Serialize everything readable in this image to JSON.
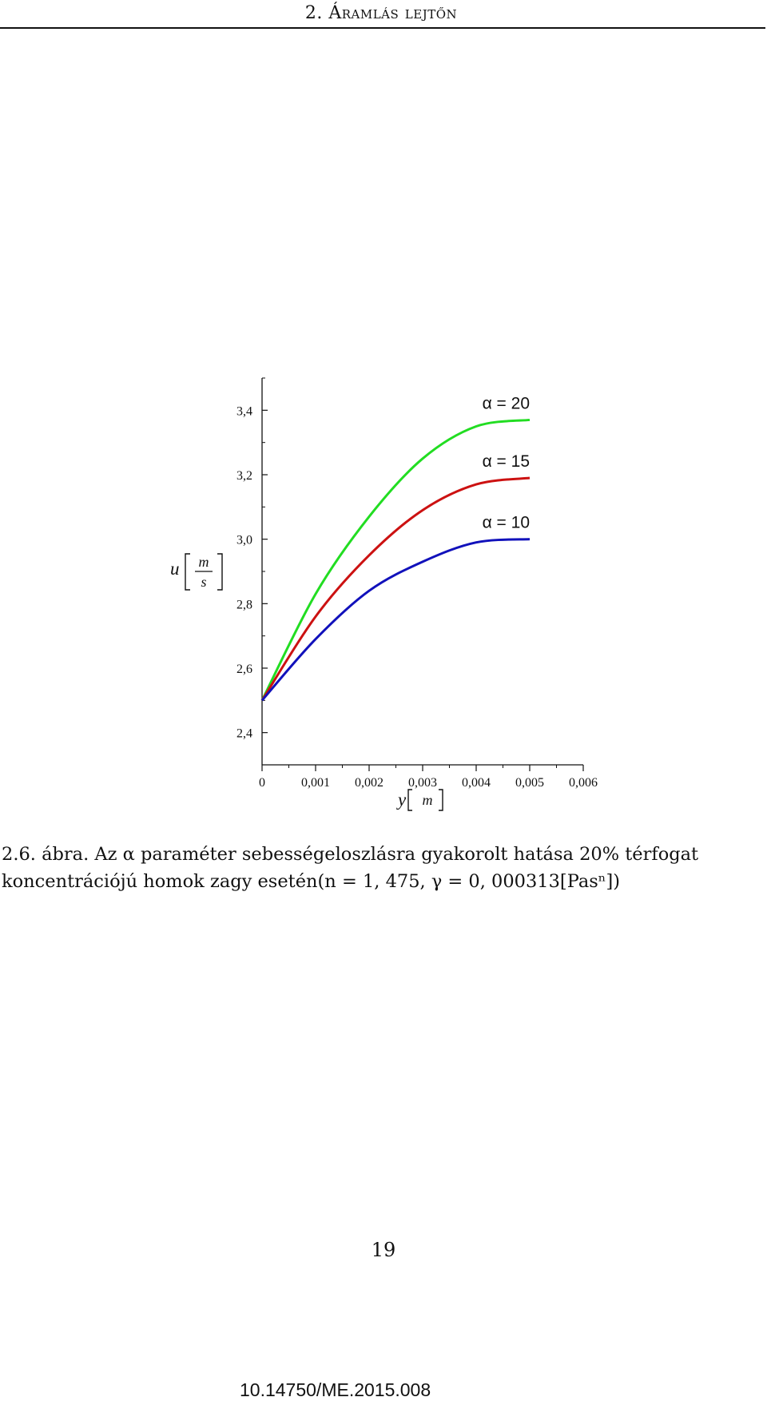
{
  "header": {
    "title": "2. Áramlás lejtőn"
  },
  "chart_data": {
    "type": "line",
    "xlabel": {
      "var": "y",
      "unit": "m"
    },
    "ylabel": {
      "var": "u",
      "unit_num": "m",
      "unit_den": "s"
    },
    "xlim": [
      0,
      0.006
    ],
    "ylim": [
      2.3,
      3.5
    ],
    "xticks": [
      {
        "value": 0,
        "label": "0"
      },
      {
        "value": 0.001,
        "label": "0,001"
      },
      {
        "value": 0.002,
        "label": "0,002"
      },
      {
        "value": 0.003,
        "label": "0,003"
      },
      {
        "value": 0.004,
        "label": "0,004"
      },
      {
        "value": 0.005,
        "label": "0,005"
      },
      {
        "value": 0.006,
        "label": "0,006"
      }
    ],
    "yticks": [
      {
        "value": 2.4,
        "label": "2,4"
      },
      {
        "value": 2.6,
        "label": "2,6"
      },
      {
        "value": 2.8,
        "label": "2,8"
      },
      {
        "value": 3.0,
        "label": "3,0"
      },
      {
        "value": 3.2,
        "label": "3,2"
      },
      {
        "value": 3.4,
        "label": "3,4"
      }
    ],
    "series": [
      {
        "name": "α = 20",
        "color": "#22dd22",
        "x": [
          0,
          0.001,
          0.002,
          0.003,
          0.004,
          0.005
        ],
        "y": [
          2.5,
          2.83,
          3.07,
          3.25,
          3.35,
          3.37
        ]
      },
      {
        "name": "α = 15",
        "color": "#cc1111",
        "x": [
          0,
          0.001,
          0.002,
          0.003,
          0.004,
          0.005
        ],
        "y": [
          2.5,
          2.76,
          2.95,
          3.09,
          3.17,
          3.19
        ]
      },
      {
        "name": "α = 10",
        "color": "#1111bb",
        "x": [
          0,
          0.001,
          0.002,
          0.003,
          0.004,
          0.005
        ],
        "y": [
          2.5,
          2.69,
          2.84,
          2.93,
          2.99,
          3.0
        ]
      }
    ]
  },
  "caption": {
    "line1": "2.6. ábra. Az α paraméter sebességeloszlásra gyakorolt hatása 20% térfogat",
    "line2": "koncentrációjú homok zagy esetén(n = 1, 475, γ = 0, 000313[Pasⁿ])"
  },
  "page_number": "19",
  "doi": "10.14750/ME.2015.008"
}
